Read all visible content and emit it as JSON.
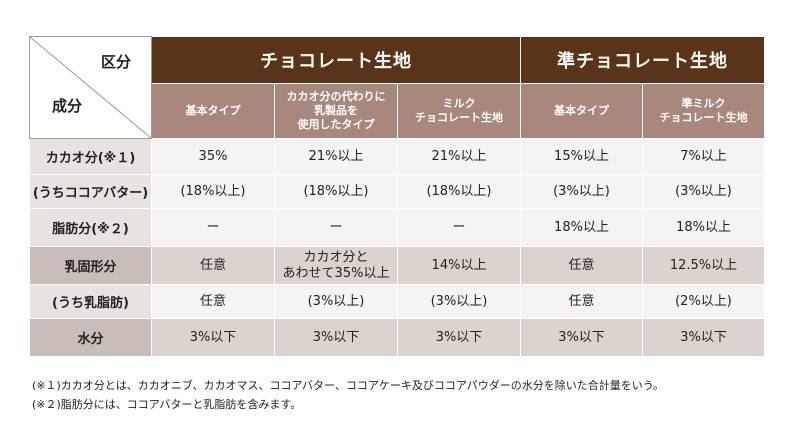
{
  "header": {
    "corner_top": "区分",
    "corner_bottom": "成分",
    "groups": [
      "チョコレート生地",
      "準チョコレート生地"
    ],
    "subs": [
      [
        "基本タイプ"
      ],
      [
        "カカオ分の代わりに",
        "乳製品を",
        "使用したタイプ"
      ],
      [
        "ミルク",
        "チョコレート生地"
      ],
      [
        "基本タイプ"
      ],
      [
        "準ミルク",
        "チョコレート生地"
      ]
    ]
  },
  "rows": [
    {
      "label": "カカオ分(※１)",
      "cells": [
        [
          "35%"
        ],
        [
          "21%以上"
        ],
        [
          "21%以上"
        ],
        [
          "15%以上"
        ],
        [
          "7%以上"
        ]
      ]
    },
    {
      "label": "(うちココアバター)",
      "cells": [
        [
          "(18%以上)"
        ],
        [
          "(18%以上)"
        ],
        [
          "(18%以上)"
        ],
        [
          "(3%以上)"
        ],
        [
          "(3%以上)"
        ]
      ]
    },
    {
      "label": "脂肪分(※２)",
      "cells": [
        [
          "ー"
        ],
        [
          "ー"
        ],
        [
          "ー"
        ],
        [
          "18%以上"
        ],
        [
          "18%以上"
        ]
      ]
    },
    {
      "label": "乳固形分",
      "cells": [
        [
          "任意"
        ],
        [
          "カカオ分と",
          "あわせて35%以上"
        ],
        [
          "14%以上"
        ],
        [
          "任意"
        ],
        [
          "12.5%以上"
        ]
      ]
    },
    {
      "label": "(うち乳脂肪)",
      "cells": [
        [
          "任意"
        ],
        [
          "(3%以上)"
        ],
        [
          "(3%以上)"
        ],
        [
          "任意"
        ],
        [
          "(2%以上)"
        ]
      ]
    },
    {
      "label": "水分",
      "cells": [
        [
          "3%以下"
        ],
        [
          "3%以下"
        ],
        [
          "3%以下"
        ],
        [
          "3%以下"
        ],
        [
          "3%以下"
        ]
      ]
    }
  ],
  "notes": [
    "(※１)カカオ分とは、カカオニブ、カカオマス、ココアバター、ココアケーキ及びココアパウダーの水分を除いた合計量をいう。",
    "(※２)脂肪分には、ココアバターと乳脂肪を含みます。"
  ]
}
